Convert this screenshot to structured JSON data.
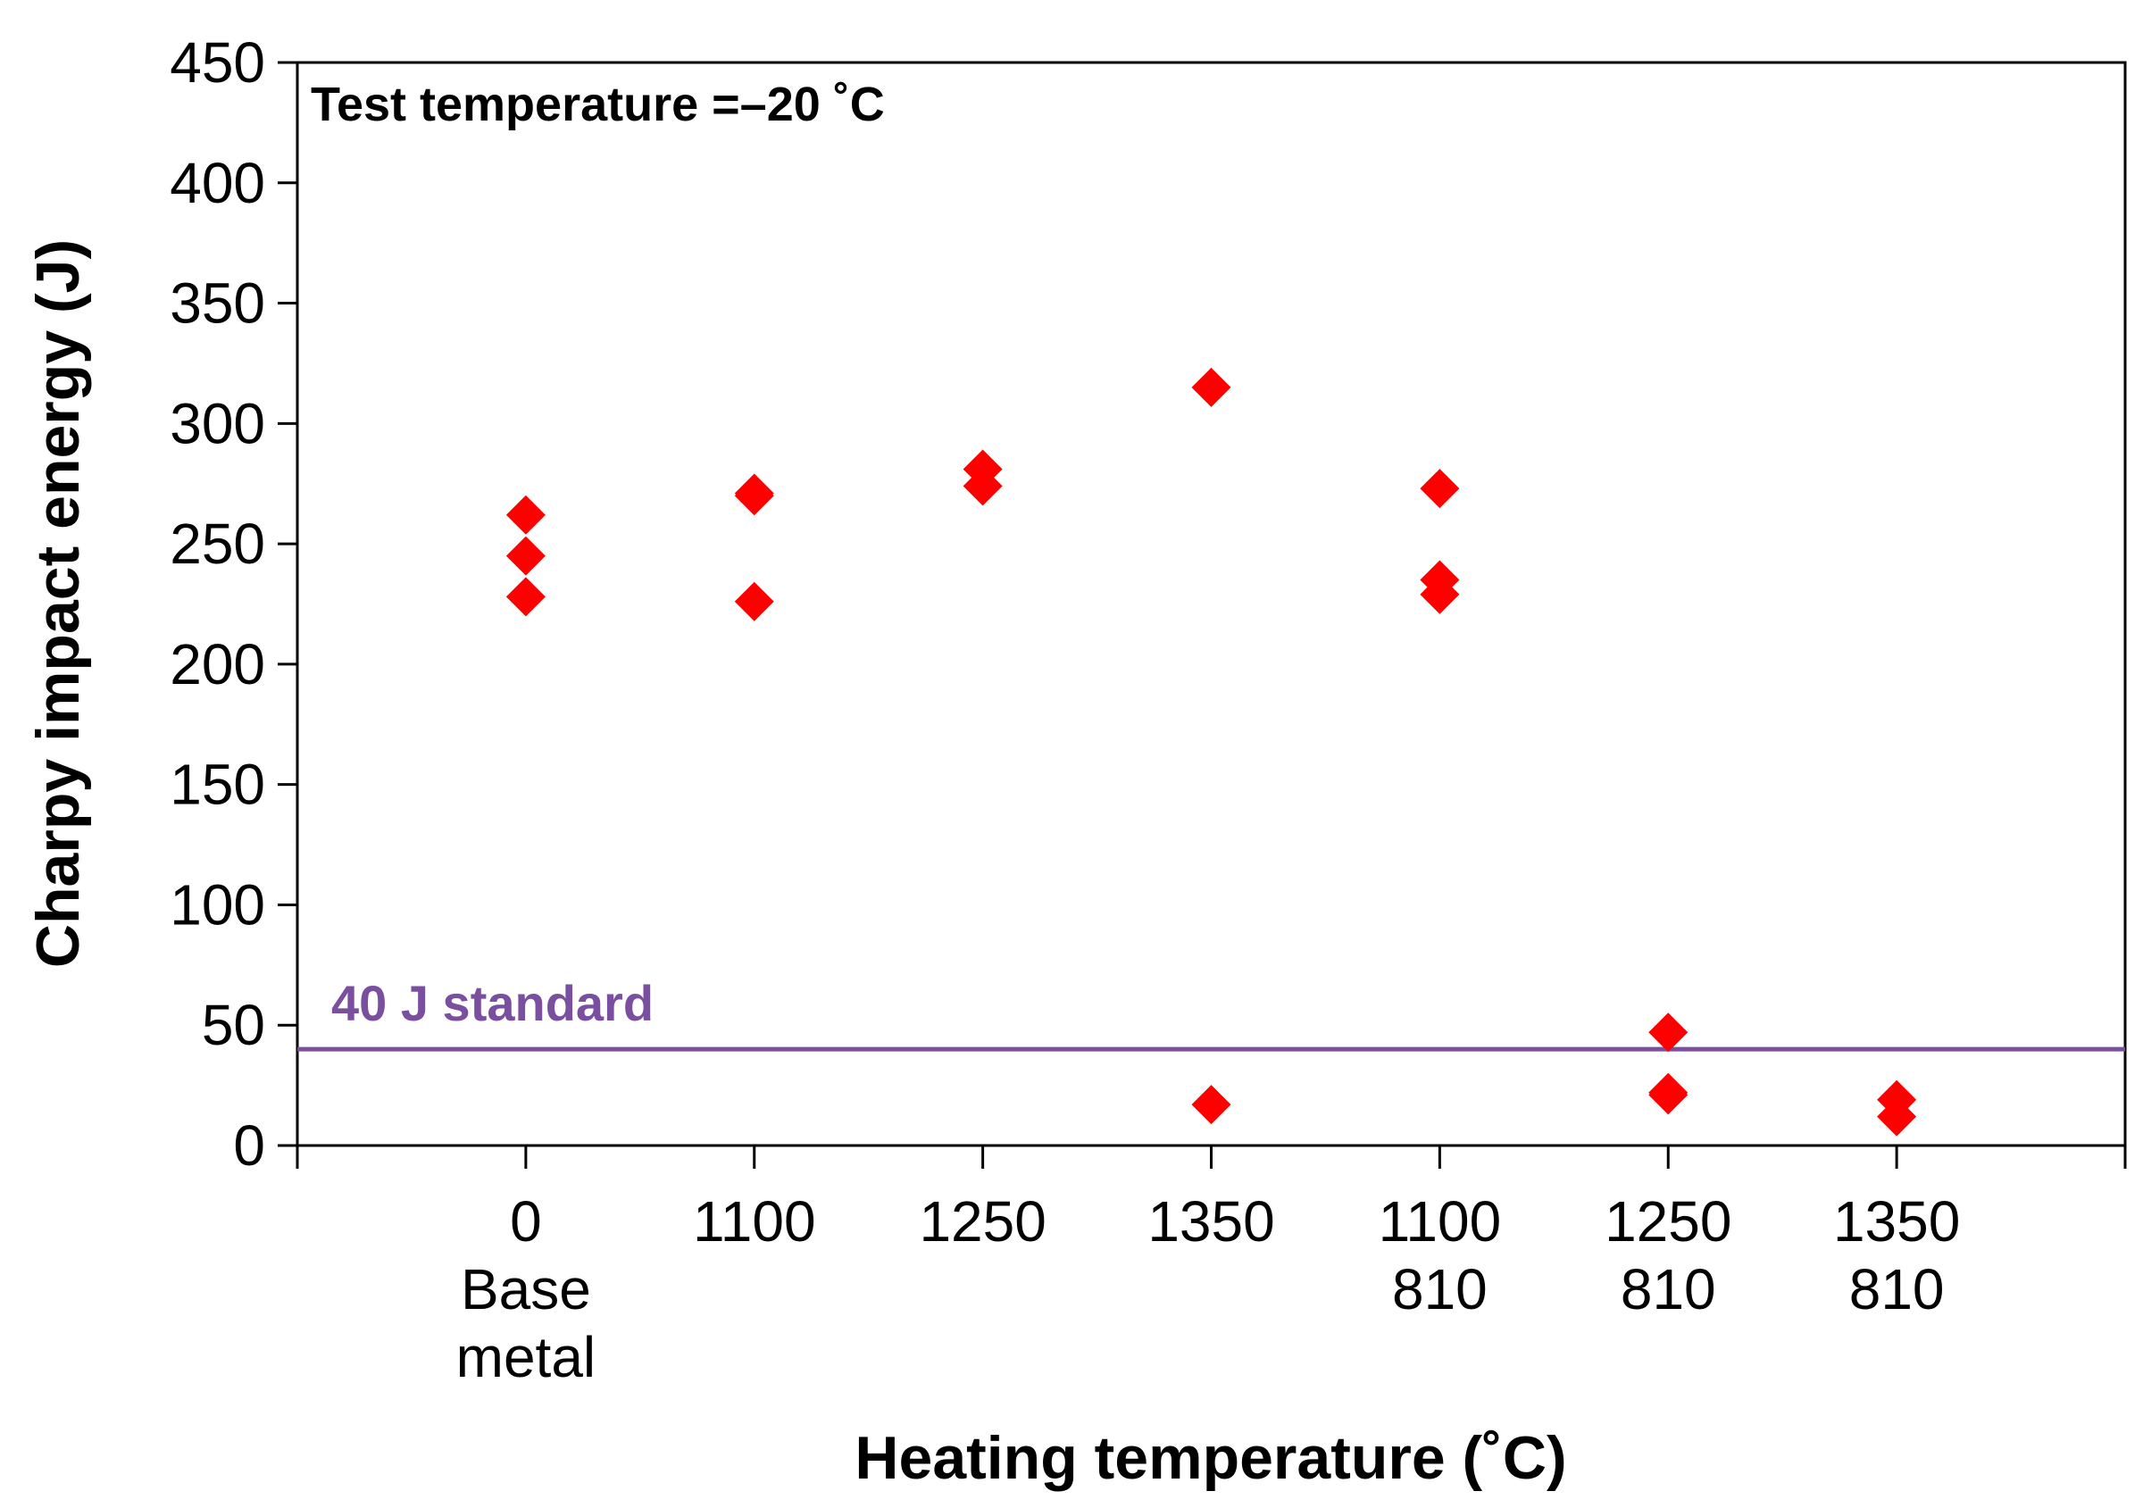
{
  "chart_data": {
    "type": "scatter",
    "title": "",
    "xlabel": "Heating temperature (˚C)",
    "ylabel": "Charpy impact energy (J)",
    "ylim": [
      0,
      450
    ],
    "yticks": [
      "0",
      "50",
      "100",
      "150",
      "200",
      "250",
      "300",
      "350",
      "400",
      "450"
    ],
    "categories": [
      {
        "lines": [
          "0",
          "Base",
          "metal"
        ]
      },
      {
        "lines": [
          "1100"
        ]
      },
      {
        "lines": [
          "1250"
        ]
      },
      {
        "lines": [
          "1350"
        ]
      },
      {
        "lines": [
          "1100",
          "810"
        ]
      },
      {
        "lines": [
          "1250",
          "810"
        ]
      },
      {
        "lines": [
          "1350",
          "810"
        ]
      }
    ],
    "series": [
      {
        "name": "Charpy impact energy",
        "marker": "diamond",
        "color": "#ff0000",
        "points": [
          {
            "category": 0,
            "value": 262
          },
          {
            "category": 0,
            "value": 245
          },
          {
            "category": 0,
            "value": 228
          },
          {
            "category": 1,
            "value": 271
          },
          {
            "category": 1,
            "value": 270
          },
          {
            "category": 1,
            "value": 226
          },
          {
            "category": 2,
            "value": 281
          },
          {
            "category": 2,
            "value": 274
          },
          {
            "category": 3,
            "value": 315
          },
          {
            "category": 3,
            "value": 17
          },
          {
            "category": 4,
            "value": 273
          },
          {
            "category": 4,
            "value": 235
          },
          {
            "category": 4,
            "value": 229
          },
          {
            "category": 5,
            "value": 47
          },
          {
            "category": 5,
            "value": 22
          },
          {
            "category": 5,
            "value": 21
          },
          {
            "category": 6,
            "value": 19
          },
          {
            "category": 6,
            "value": 12
          }
        ]
      }
    ],
    "reference_line": {
      "value": 40,
      "label": "40 J standard",
      "color": "#7a4fa0"
    },
    "annotations": [
      {
        "text": "Test temperature =–20 ˚C"
      }
    ]
  }
}
